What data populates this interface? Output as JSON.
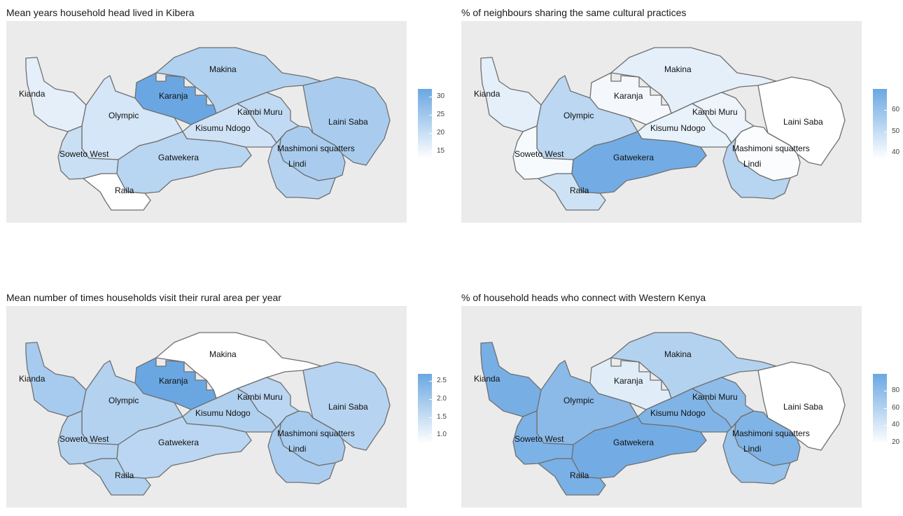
{
  "colors": {
    "low": "#ffffff",
    "high": "#6aa7e2",
    "background": "#ebebeb",
    "border": "#6f6f6f"
  },
  "region_names": [
    "Kianda",
    "Olympic",
    "Soweto West",
    "Raila",
    "Karanja",
    "Makina",
    "Gatwekera",
    "Kisumu Ndogo",
    "Kambi Muru",
    "Laini Saba",
    "Mashimoni squatters",
    "Lindi"
  ],
  "panels": [
    {
      "title": "Mean years household head lived in Kibera",
      "legend": {
        "min": 13,
        "max": 32,
        "ticks": [
          30,
          25,
          20,
          15
        ],
        "tick_labels": [
          "30",
          "25",
          "20",
          "15"
        ]
      },
      "values": {
        "Kianda": 16.5,
        "Olympic": 18.5,
        "Soweto West": 20,
        "Raila": 13,
        "Karanja": 32,
        "Makina": 23,
        "Gatwekera": 22,
        "Kisumu Ndogo": 19,
        "Kambi Muru": 21,
        "Laini Saba": 24,
        "Mashimoni squatters": 24,
        "Lindi": 22.5
      }
    },
    {
      "title": "% of neighbours sharing the same cultural practices",
      "legend": {
        "min": 37,
        "max": 70,
        "ticks": [
          60,
          50,
          40
        ],
        "tick_labels": [
          "60",
          "50",
          "40"
        ]
      },
      "values": {
        "Kianda": 43,
        "Olympic": 52,
        "Soweto West": 39,
        "Raila": 48,
        "Karanja": 39.5,
        "Makina": 43,
        "Gatwekera": 68,
        "Kisumu Ndogo": 42,
        "Kambi Muru": 41,
        "Laini Saba": 37,
        "Mashimoni squatters": 38,
        "Lindi": 53
      }
    },
    {
      "title": "Mean number of times households visit their rural area per year",
      "legend": {
        "min": 0.75,
        "max": 2.7,
        "ticks": [
          2.5,
          2.0,
          1.5,
          1.0
        ],
        "tick_labels": [
          "2.5",
          "2.0",
          "1.5",
          "1.0"
        ]
      },
      "values": {
        "Kianda": 1.9,
        "Olympic": 1.75,
        "Soweto West": 1.75,
        "Raila": 1.75,
        "Karanja": 2.7,
        "Makina": 0.75,
        "Gatwekera": 1.65,
        "Kisumu Ndogo": 1.8,
        "Kambi Muru": 1.65,
        "Laini Saba": 1.7,
        "Mashimoni squatters": 1.9,
        "Lindi": 1.85
      }
    },
    {
      "title": "% of household heads who connect with Western Kenya",
      "legend": {
        "min": 18,
        "max": 100,
        "ticks": [
          80,
          60,
          40,
          20
        ],
        "tick_labels": [
          "80",
          "60",
          "40",
          "20"
        ]
      },
      "values": {
        "Kianda": 93,
        "Olympic": 82,
        "Soweto West": 90,
        "Raila": 92,
        "Karanja": 35,
        "Makina": 60,
        "Gatwekera": 95,
        "Kisumu Ndogo": 88,
        "Kambi Muru": 80,
        "Laini Saba": 18,
        "Mashimoni squatters": 88,
        "Lindi": 75
      }
    }
  ]
}
